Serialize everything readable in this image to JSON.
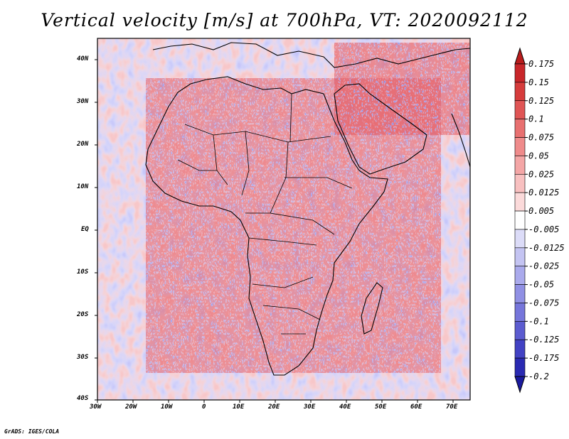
{
  "title": "Vertical velocity [m/s] at 700hPa, VT: 2020092112",
  "footer": "GrADS: IGES/COLA",
  "map": {
    "lon_labels": [
      "30W",
      "20W",
      "10W",
      "0",
      "10E",
      "20E",
      "30E",
      "40E",
      "50E",
      "60E",
      "70E"
    ],
    "lat_labels": [
      "40N",
      "30N",
      "20N",
      "10N",
      "EQ",
      "10S",
      "20S",
      "30S",
      "40S"
    ],
    "lon_range": [
      -30,
      75
    ],
    "lat_range": [
      -40,
      45
    ]
  },
  "colorbar": {
    "labels": [
      "0.175",
      "0.15",
      "0.125",
      "0.1",
      "0.075",
      "0.05",
      "0.025",
      "0.0125",
      "0.005",
      "-0.005",
      "-0.0125",
      "-0.025",
      "-0.05",
      "-0.075",
      "-0.1",
      "-0.125",
      "-0.175",
      "-0.2"
    ],
    "colors": [
      "#b91c1c",
      "#c8262a",
      "#d63c3c",
      "#e05555",
      "#e87070",
      "#ef8b8b",
      "#f4a6a6",
      "#f8c0c0",
      "#fbdada",
      "#ffffff",
      "#dcdcf8",
      "#c4c4f2",
      "#aaaaec",
      "#9090e4",
      "#7676db",
      "#5c5cd0",
      "#4242c4",
      "#2a2ab2",
      "#1a1a9e"
    ]
  }
}
